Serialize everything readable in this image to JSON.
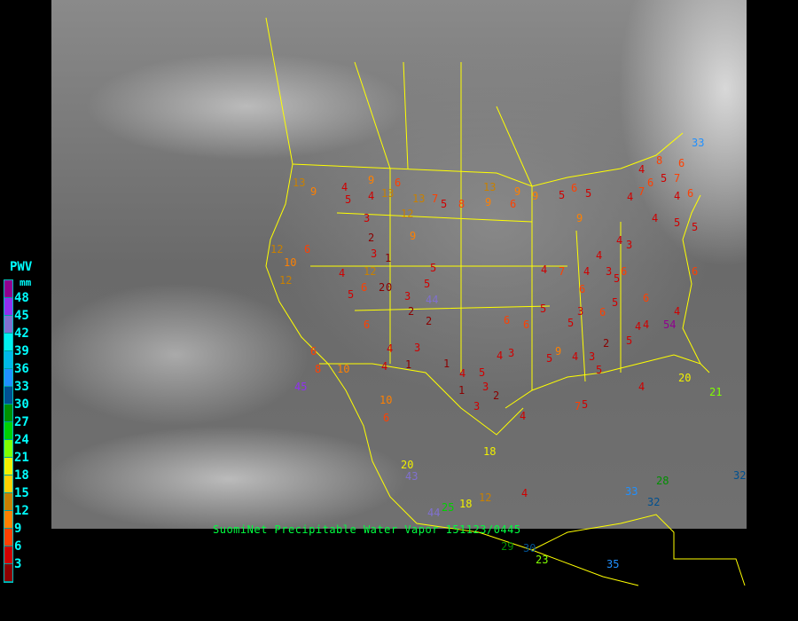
{
  "caption": "SuomiNet Precipitable Water Vapor 151123/0445",
  "legend": {
    "title": "PWV",
    "unit": "mm",
    "ticks": [
      "48",
      "45",
      "42",
      "39",
      "36",
      "33",
      "30",
      "27",
      "24",
      "21",
      "18",
      "15",
      "12",
      "9",
      "6",
      "3"
    ],
    "colors": [
      "#900090",
      "#9030f0",
      "#8070d0",
      "#00f0f0",
      "#00b8e8",
      "#2090ff",
      "#005090",
      "#009000",
      "#00d000",
      "#80ff00",
      "#f0f000",
      "#ffd000",
      "#c88000",
      "#ff8000",
      "#ff4000",
      "#d00000",
      "#8b0000"
    ]
  },
  "colors": {
    "boundaries": "#ffff00",
    "caption": "#00ff40",
    "legend_text": "#00ffff"
  },
  "stations": [
    9,
    13,
    6,
    4,
    5,
    4,
    3,
    13,
    9,
    7,
    5,
    8,
    9,
    6,
    13,
    5,
    9,
    6,
    5,
    4,
    7,
    6,
    5,
    4,
    6,
    4,
    5,
    5,
    7,
    9,
    13,
    12,
    10,
    12,
    2,
    3,
    1,
    12,
    9,
    5,
    12,
    6,
    4,
    2,
    3,
    1,
    5,
    6,
    2,
    1,
    3,
    0,
    4,
    5,
    44,
    6,
    5,
    3,
    4,
    5,
    2,
    3,
    4,
    6,
    6,
    4,
    3,
    2,
    5,
    4,
    6,
    3,
    5,
    4,
    5,
    2,
    4,
    1,
    3,
    4,
    5,
    6,
    4,
    3,
    5,
    7,
    9,
    10,
    6,
    6,
    18,
    20,
    18,
    12,
    25,
    44,
    29,
    30,
    23,
    35,
    32,
    33,
    28,
    32,
    33,
    6,
    8,
    4,
    4,
    54,
    4,
    6,
    6,
    4,
    3,
    5,
    45,
    10,
    8,
    6,
    4,
    21,
    43,
    20,
    4,
    5,
    7,
    9,
    4
  ]
}
